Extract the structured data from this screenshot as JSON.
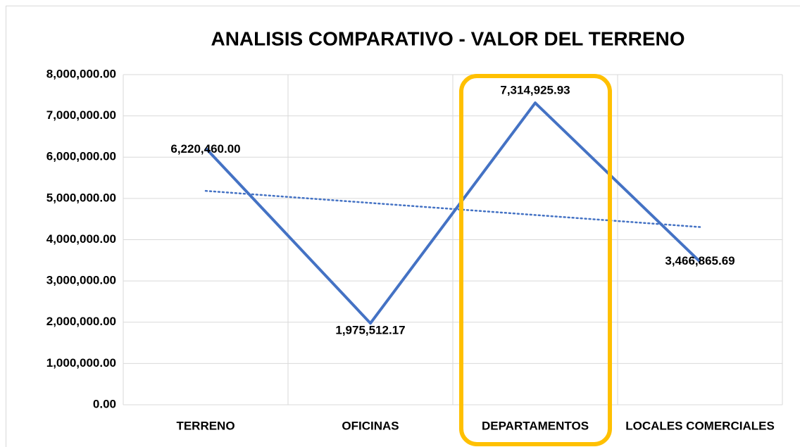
{
  "chart_data": {
    "type": "line",
    "title": "ANALISIS COMPARATIVO - VALOR DEL TERRENO",
    "categories": [
      "TERRENO",
      "OFICINAS",
      "DEPARTAMENTOS",
      "LOCALES COMERCIALES"
    ],
    "series": [
      {
        "name": "VALOR DEL TERRENO",
        "color": "#4472c4",
        "values": [
          6220460.0,
          1975512.17,
          7314925.93,
          3466865.69
        ],
        "value_labels": [
          "6,220,460.00",
          "1,975,512.17",
          "7,314,925.93",
          "3,466,865.69"
        ]
      }
    ],
    "trendline": "linear",
    "ylim": [
      0,
      8000000
    ],
    "yticks": [
      {
        "value": 0,
        "label": "0.00"
      },
      {
        "value": 1000000,
        "label": "1,000,000.00"
      },
      {
        "value": 2000000,
        "label": "2,000,000.00"
      },
      {
        "value": 3000000,
        "label": "3,000,000.00"
      },
      {
        "value": 4000000,
        "label": "4,000,000.00"
      },
      {
        "value": 5000000,
        "label": "5,000,000.00"
      },
      {
        "value": 6000000,
        "label": "6,000,000.00"
      },
      {
        "value": 7000000,
        "label": "7,000,000.00"
      },
      {
        "value": 8000000,
        "label": "8,000,000.00"
      }
    ],
    "grid": true
  }
}
